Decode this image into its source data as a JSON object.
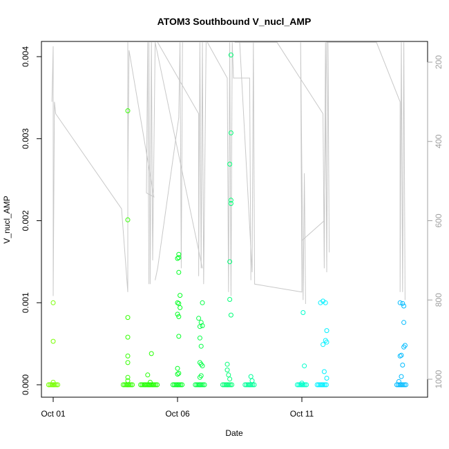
{
  "chart_data": {
    "type": "scatter",
    "title": "ATOM3 Southbound V_nucl_AMP",
    "xlabel": "Date",
    "ylabel": "V_nucl_AMP",
    "x_ticks": [
      "Oct 01",
      "Oct 06",
      "Oct 11"
    ],
    "x_tick_days": [
      1,
      6,
      11
    ],
    "xlim_days": [
      0.5,
      15.7
    ],
    "y_ticks": [
      "0.000",
      "0.001",
      "0.002",
      "0.003",
      "0.004"
    ],
    "ylim": [
      0,
      0.00415
    ],
    "y2_ticks": [
      "200",
      "400",
      "600",
      "800",
      "1000"
    ],
    "y2lim": [
      1015,
      160
    ],
    "grid": false,
    "legend": "none",
    "colors": {
      "depth_line": "#c8c8c8",
      "axis": "#000000",
      "secondary_axis": "#a0a0a0"
    },
    "series": [
      {
        "color": "#77ff00",
        "points": [
          [
            1.0,
            0.001
          ],
          [
            1.0,
            0.00053
          ],
          [
            1.0,
            3e-05
          ],
          [
            1.0,
            0.0
          ]
        ]
      },
      {
        "color": "#33ff00",
        "points": [
          [
            4.0,
            0.00334
          ],
          [
            4.0,
            0.00201
          ],
          [
            4.0,
            0.00082
          ],
          [
            4.0,
            0.00058
          ],
          [
            4.0,
            0.00035
          ],
          [
            4.0,
            0.00027
          ],
          [
            4.0,
            9e-05
          ],
          [
            4.0,
            5e-05
          ],
          [
            4.0,
            0.0
          ]
        ]
      },
      {
        "color": "#22ff00",
        "points": [
          [
            4.8,
            0.00012
          ],
          [
            4.95,
            0.00038
          ],
          [
            4.9,
            3e-05
          ],
          [
            4.7,
            0.0
          ],
          [
            5.0,
            0.0
          ]
        ]
      },
      {
        "color": "#00ff22",
        "points": [
          [
            6.05,
            0.00159
          ],
          [
            6.05,
            0.00155
          ],
          [
            6.0,
            0.00154
          ],
          [
            6.05,
            0.00137
          ],
          [
            6.1,
            0.00109
          ],
          [
            6.0,
            0.001
          ],
          [
            6.05,
            0.00099
          ],
          [
            6.1,
            0.00094
          ],
          [
            6.0,
            0.00086
          ],
          [
            6.05,
            0.00083
          ],
          [
            6.05,
            0.00059
          ],
          [
            6.0,
            0.0002
          ],
          [
            6.0,
            0.00013
          ],
          [
            6.05,
            0.00014
          ],
          [
            6.0,
            0.0
          ]
        ]
      },
      {
        "color": "#00ff44",
        "points": [
          [
            6.85,
            0.00081
          ],
          [
            6.95,
            0.00076
          ],
          [
            6.9,
            0.00071
          ],
          [
            7.0,
            0.00072
          ],
          [
            7.0,
            0.001
          ],
          [
            6.9,
            0.00057
          ],
          [
            6.95,
            0.00047
          ],
          [
            6.9,
            0.00027
          ],
          [
            6.95,
            0.00025
          ],
          [
            7.0,
            0.00023
          ],
          [
            6.9,
            9e-05
          ],
          [
            6.95,
            0.00011
          ],
          [
            6.9,
            0.0
          ]
        ]
      },
      {
        "color": "#00ff77",
        "points": [
          [
            8.15,
            0.00402
          ],
          [
            8.15,
            0.00307
          ],
          [
            8.1,
            0.00269
          ],
          [
            8.15,
            0.00225
          ],
          [
            8.15,
            0.00221
          ],
          [
            8.1,
            0.0015
          ],
          [
            8.1,
            0.00104
          ],
          [
            8.15,
            0.00085
          ],
          [
            8.0,
            0.00025
          ],
          [
            8.0,
            0.00018
          ],
          [
            8.05,
            0.00012
          ],
          [
            8.1,
            7e-05
          ],
          [
            8.0,
            0.0
          ]
        ]
      },
      {
        "color": "#00ff99",
        "points": [
          [
            8.95,
            0.0001
          ],
          [
            9.0,
            5e-05
          ],
          [
            8.9,
            0.0
          ]
        ]
      },
      {
        "color": "#00ffcc",
        "points": [
          [
            11.05,
            0.00088
          ],
          [
            11.1,
            0.00023
          ],
          [
            11.0,
            2e-05
          ],
          [
            11.0,
            0.0
          ]
        ]
      },
      {
        "color": "#00f0ff",
        "points": [
          [
            11.85,
            0.00102
          ],
          [
            11.75,
            0.001
          ],
          [
            11.95,
            0.001
          ],
          [
            12.0,
            0.00066
          ],
          [
            11.95,
            0.00054
          ],
          [
            12.0,
            0.00052
          ],
          [
            11.85,
            0.00049
          ],
          [
            11.9,
            0.00016
          ],
          [
            12.0,
            8e-05
          ],
          [
            11.8,
            0.0
          ]
        ]
      },
      {
        "color": "#00bbff",
        "points": [
          [
            14.95,
            0.001
          ],
          [
            15.05,
            0.00099
          ],
          [
            15.1,
            0.00096
          ],
          [
            15.1,
            0.00076
          ],
          [
            15.15,
            0.00048
          ],
          [
            15.1,
            0.00046
          ],
          [
            15.0,
            0.00036
          ],
          [
            14.95,
            0.00035
          ],
          [
            15.05,
            0.00024
          ],
          [
            15.0,
            0.0001
          ],
          [
            14.9,
            4e-05
          ],
          [
            15.0,
            0.0
          ]
        ]
      }
    ],
    "depth_trace_segments": [
      [
        [
          0.95,
          300
        ],
        [
          1.0,
          160
        ],
        [
          1.0,
          790
        ],
        [
          1.05,
          300
        ],
        [
          1.1,
          330
        ],
        [
          3.75,
          570
        ],
        [
          4.0,
          780
        ],
        [
          4.0,
          150
        ]
      ],
      [
        [
          4.0,
          500
        ],
        [
          4.05,
          170
        ],
        [
          5.05,
          540
        ],
        [
          4.75,
          530
        ],
        [
          4.8,
          150
        ],
        [
          4.85,
          760
        ]
      ],
      [
        [
          4.85,
          150
        ],
        [
          4.9,
          760
        ],
        [
          4.95,
          150
        ],
        [
          5.0,
          700
        ],
        [
          5.1,
          150
        ],
        [
          7.0,
          720
        ]
      ],
      [
        [
          5.2,
          150
        ],
        [
          6.85,
          330
        ],
        [
          6.85,
          740
        ],
        [
          6.9,
          150
        ],
        [
          6.95,
          720
        ],
        [
          7.0,
          150
        ],
        [
          7.05,
          760
        ],
        [
          7.15,
          150
        ]
      ],
      [
        [
          5.1,
          750
        ],
        [
          5.2,
          720
        ],
        [
          6.05,
          340
        ],
        [
          6.1,
          150
        ],
        [
          6.15,
          720
        ],
        [
          6.2,
          150
        ]
      ],
      [
        [
          7.2,
          150
        ],
        [
          8.0,
          240
        ],
        [
          8.05,
          780
        ],
        [
          8.1,
          150
        ],
        [
          8.15,
          790
        ],
        [
          8.2,
          150
        ],
        [
          8.25,
          240
        ],
        [
          8.9,
          240
        ],
        [
          8.95,
          750
        ]
      ],
      [
        [
          8.5,
          150
        ],
        [
          9.0,
          730
        ],
        [
          9.05,
          150
        ],
        [
          9.1,
          760
        ],
        [
          11.0,
          780
        ],
        [
          10.95,
          150
        ],
        [
          11.05,
          800
        ],
        [
          11.1,
          480
        ],
        [
          11.15,
          810
        ]
      ],
      [
        [
          8.3,
          150
        ],
        [
          10.0,
          150
        ],
        [
          11.85,
          330
        ],
        [
          11.9,
          720
        ],
        [
          11.95,
          150
        ],
        [
          12.0,
          730
        ],
        [
          12.05,
          150
        ],
        [
          12.1,
          680
        ]
      ],
      [
        [
          11.0,
          650
        ],
        [
          11.9,
          600
        ],
        [
          12.0,
          150
        ],
        [
          14.0,
          150
        ],
        [
          14.95,
          300
        ],
        [
          14.95,
          780
        ],
        [
          15.0,
          150
        ],
        [
          15.05,
          780
        ],
        [
          15.1,
          150
        ],
        [
          15.15,
          800
        ]
      ]
    ]
  }
}
